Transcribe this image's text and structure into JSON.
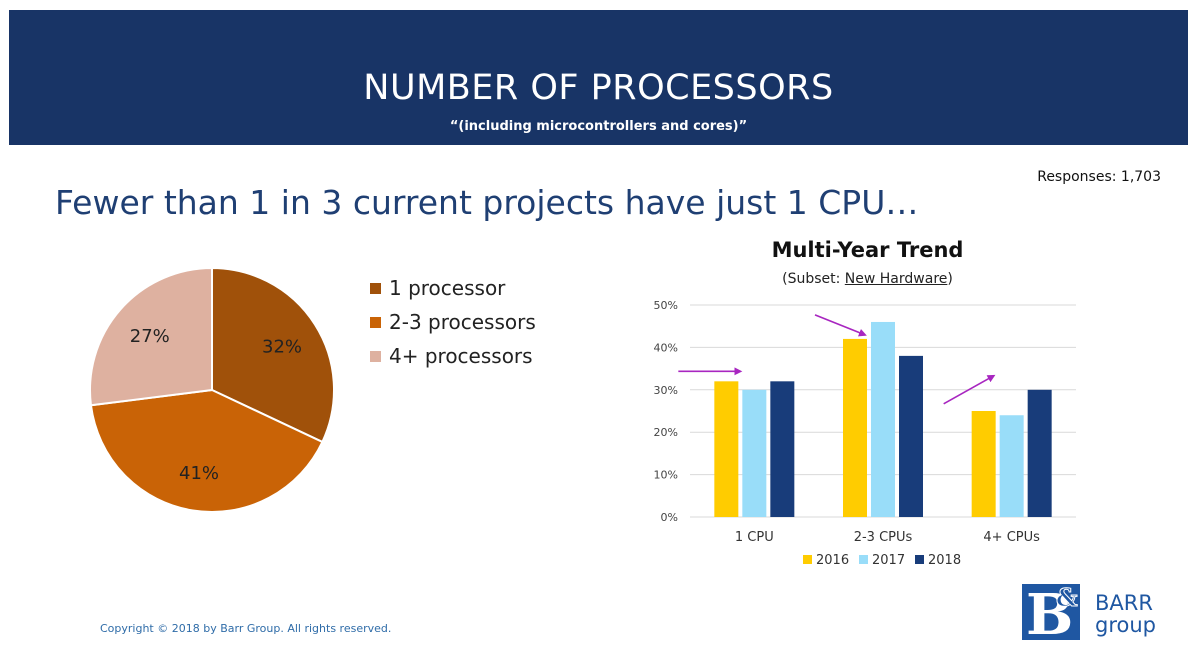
{
  "header": {
    "title": "NUMBER OF PROCESSORS",
    "subtitle": "“(including microcontrollers and cores)”"
  },
  "responses": "Responses: 1,703",
  "headline": "Fewer than 1 in 3 current projects have just 1 CPU…",
  "colors": {
    "banner": "#183466",
    "pie": [
      "#a0510a",
      "#c96306",
      "#deb1a0"
    ],
    "series": [
      "#ffcc00",
      "#99ddf9",
      "#183c7a"
    ],
    "arrows": "#a826c0"
  },
  "chart_data": [
    {
      "type": "pie",
      "categories": [
        "1 processor",
        "2-3 processors",
        "4+ processors"
      ],
      "values": [
        32,
        41,
        27
      ],
      "labels": [
        "32%",
        "41%",
        "27%"
      ]
    },
    {
      "type": "bar",
      "title": "Multi-Year Trend",
      "subtitle_prefix": "(Subset: ",
      "subtitle_link": "New Hardware",
      "subtitle_suffix": ")",
      "categories": [
        "1 CPU",
        "2-3 CPUs",
        "4+ CPUs"
      ],
      "series": [
        {
          "name": "2016",
          "values": [
            32,
            42,
            25
          ]
        },
        {
          "name": "2017",
          "values": [
            30,
            46,
            24
          ]
        },
        {
          "name": "2018",
          "values": [
            32,
            38,
            30
          ]
        }
      ],
      "ylim": [
        0,
        50
      ],
      "yticks": [
        "0%",
        "10%",
        "20%",
        "30%",
        "40%",
        "50%"
      ],
      "grid": true,
      "legend": "bottom"
    }
  ],
  "footer": "Copyright © 2018 by Barr Group.  All rights reserved.",
  "logo": {
    "line1": "BARR",
    "line2": "group"
  }
}
